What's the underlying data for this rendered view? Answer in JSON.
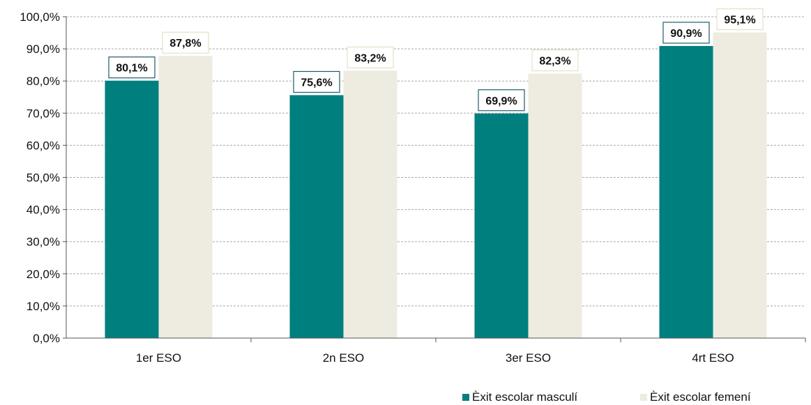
{
  "colors": {
    "male": "#007f7f",
    "female": "#eeebe0",
    "label_border_male": "#1f5a66",
    "label_border_female": "#e6e0c8",
    "grid": "#a8a8a8",
    "axis": "#555555"
  },
  "chart_data": {
    "type": "bar",
    "title": "",
    "xlabel": "",
    "ylabel": "",
    "categories": [
      "1er ESO",
      "2n ESO",
      "3er ESO",
      "4rt ESO"
    ],
    "ylim": [
      0,
      100
    ],
    "y_ticks": [
      "0,0%",
      "10,0%",
      "20,0%",
      "30,0%",
      "40,0%",
      "50,0%",
      "60,0%",
      "70,0%",
      "80,0%",
      "90,0%",
      "100,0%"
    ],
    "grid": true,
    "legend_position": "bottom-right",
    "series": [
      {
        "name": "Èxit escolar masculí",
        "values": [
          80.1,
          75.6,
          69.9,
          90.9
        ],
        "labels": [
          "80,1%",
          "75,6%",
          "69,9%",
          "90,9%"
        ]
      },
      {
        "name": "Èxit escolar femení",
        "values": [
          87.8,
          83.2,
          82.3,
          95.1
        ],
        "labels": [
          "87,8%",
          "83,2%",
          "82,3%",
          "95,1%"
        ]
      }
    ]
  }
}
